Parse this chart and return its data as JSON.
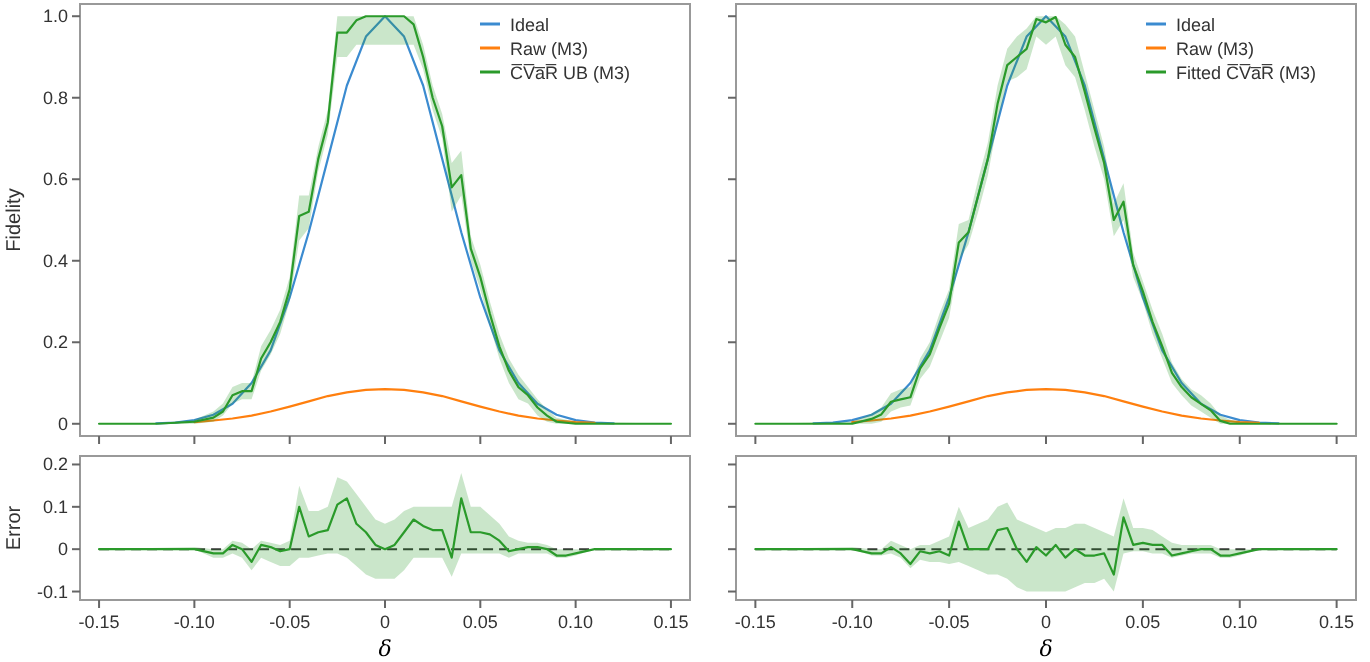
{
  "chart_data": [
    {
      "type": "line",
      "ylabel": "Fidelity",
      "xlim": [
        -0.16,
        0.16
      ],
      "ylim": [
        -0.03,
        1.03
      ],
      "tick_labels": "y",
      "legend": "top right",
      "grid": false,
      "xticks": [
        {
          "value": -0.15,
          "label": null
        },
        {
          "value": -0.1,
          "label": null
        },
        {
          "value": -0.05,
          "label": null
        },
        {
          "value": 0,
          "label": null
        },
        {
          "value": 0.05,
          "label": null
        },
        {
          "value": 0.1,
          "label": null
        },
        {
          "value": 0.15,
          "label": null
        }
      ],
      "yticks": [
        0,
        0.2,
        0.4,
        0.6,
        0.8,
        {
          "value": 1,
          "label": "1.0"
        }
      ],
      "series": [
        {
          "name": "Ideal",
          "color": "#3b8bd0",
          "x": [
            -0.12,
            -0.11,
            -0.1,
            -0.09,
            -0.08,
            -0.07,
            -0.06,
            -0.05,
            -0.04,
            -0.03,
            -0.02,
            -0.01,
            0,
            0.01,
            0.02,
            0.03,
            0.04,
            0.05,
            0.06,
            0.07,
            0.08,
            0.09,
            0.1,
            0.11,
            0.12
          ],
          "values": [
            0.001,
            0.003,
            0.009,
            0.022,
            0.049,
            0.1,
            0.18,
            0.31,
            0.47,
            0.65,
            0.83,
            0.95,
            1.0,
            0.95,
            0.83,
            0.65,
            0.47,
            0.31,
            0.18,
            0.1,
            0.049,
            0.022,
            0.009,
            0.003,
            0.001
          ]
        },
        {
          "name": "Raw (M3)",
          "color": "#ff7f0e",
          "x": [
            -0.1,
            -0.09,
            -0.08,
            -0.07,
            -0.06,
            -0.05,
            -0.04,
            -0.03,
            -0.02,
            -0.01,
            0,
            0.01,
            0.02,
            0.03,
            0.04,
            0.05,
            0.06,
            0.07,
            0.08,
            0.09,
            0.1,
            0.11
          ],
          "values": [
            0.004,
            0.008,
            0.013,
            0.02,
            0.03,
            0.042,
            0.055,
            0.068,
            0.077,
            0.083,
            0.085,
            0.083,
            0.077,
            0.068,
            0.055,
            0.042,
            0.03,
            0.02,
            0.013,
            0.008,
            0.004,
            0.002
          ]
        },
        {
          "name": "C̅V̅a̅R̅ UB (M3)",
          "color": "#2a9a2a",
          "x": [
            -0.15,
            -0.12,
            -0.1,
            -0.09,
            -0.085,
            -0.08,
            -0.075,
            -0.07,
            -0.065,
            -0.06,
            -0.055,
            -0.05,
            -0.045,
            -0.04,
            -0.035,
            -0.03,
            -0.025,
            -0.02,
            -0.015,
            -0.01,
            -0.005,
            0,
            0.005,
            0.01,
            0.015,
            0.02,
            0.025,
            0.03,
            0.035,
            0.04,
            0.045,
            0.05,
            0.055,
            0.06,
            0.065,
            0.07,
            0.075,
            0.08,
            0.085,
            0.09,
            0.1,
            0.15
          ],
          "values": [
            0,
            0,
            0.005,
            0.015,
            0.03,
            0.07,
            0.08,
            0.08,
            0.16,
            0.2,
            0.25,
            0.33,
            0.51,
            0.52,
            0.65,
            0.74,
            0.96,
            0.96,
            0.99,
            1.0,
            1.0,
            1.0,
            1.0,
            1.0,
            0.98,
            0.9,
            0.8,
            0.73,
            0.58,
            0.61,
            0.43,
            0.36,
            0.27,
            0.19,
            0.13,
            0.09,
            0.07,
            0.04,
            0.02,
            0.005,
            0,
            0
          ],
          "lower": [
            0,
            0,
            0,
            0.005,
            0.02,
            0.05,
            0.06,
            0.06,
            0.13,
            0.17,
            0.22,
            0.3,
            0.45,
            0.48,
            0.62,
            0.71,
            0.9,
            0.9,
            0.93,
            0.93,
            0.93,
            0.93,
            0.93,
            0.93,
            0.93,
            0.87,
            0.77,
            0.7,
            0.52,
            0.56,
            0.4,
            0.33,
            0.24,
            0.16,
            0.1,
            0.06,
            0.05,
            0.02,
            0.005,
            0,
            0,
            0
          ],
          "upper": [
            0,
            0,
            0.01,
            0.03,
            0.05,
            0.09,
            0.1,
            0.1,
            0.19,
            0.23,
            0.28,
            0.36,
            0.56,
            0.56,
            0.68,
            0.77,
            1.0,
            1.0,
            1.0,
            1.0,
            1.0,
            1.0,
            1.0,
            1.0,
            1.0,
            0.93,
            0.83,
            0.76,
            0.64,
            0.67,
            0.46,
            0.39,
            0.3,
            0.22,
            0.16,
            0.12,
            0.09,
            0.06,
            0.035,
            0.015,
            0.005,
            0
          ]
        }
      ]
    },
    {
      "type": "line",
      "xlim": [
        -0.16,
        0.16
      ],
      "ylim": [
        -0.03,
        1.03
      ],
      "tick_labels": false,
      "legend": "top right",
      "grid": false,
      "xticks": [
        {
          "value": -0.15,
          "label": null
        },
        {
          "value": -0.1,
          "label": null
        },
        {
          "value": -0.05,
          "label": null
        },
        {
          "value": 0,
          "label": null
        },
        {
          "value": 0.05,
          "label": null
        },
        {
          "value": 0.1,
          "label": null
        },
        {
          "value": 0.15,
          "label": null
        }
      ],
      "yticks": [
        {
          "value": 0,
          "label": null
        },
        {
          "value": 0.2,
          "label": null
        },
        {
          "value": 0.4,
          "label": null
        },
        {
          "value": 0.6,
          "label": null
        },
        {
          "value": 0.8,
          "label": null
        },
        {
          "value": 1,
          "label": null
        }
      ],
      "series": [
        {
          "name": "Ideal",
          "color": "#3b8bd0",
          "x": [
            -0.12,
            -0.11,
            -0.1,
            -0.09,
            -0.08,
            -0.07,
            -0.06,
            -0.05,
            -0.04,
            -0.03,
            -0.02,
            -0.01,
            0,
            0.01,
            0.02,
            0.03,
            0.04,
            0.05,
            0.06,
            0.07,
            0.08,
            0.09,
            0.1,
            0.11,
            0.12
          ],
          "values": [
            0.001,
            0.003,
            0.009,
            0.022,
            0.049,
            0.1,
            0.18,
            0.31,
            0.47,
            0.65,
            0.83,
            0.95,
            1.0,
            0.95,
            0.83,
            0.65,
            0.47,
            0.31,
            0.18,
            0.1,
            0.049,
            0.022,
            0.009,
            0.003,
            0.001
          ]
        },
        {
          "name": "Raw (M3)",
          "color": "#ff7f0e",
          "x": [
            -0.1,
            -0.09,
            -0.08,
            -0.07,
            -0.06,
            -0.05,
            -0.04,
            -0.03,
            -0.02,
            -0.01,
            0,
            0.01,
            0.02,
            0.03,
            0.04,
            0.05,
            0.06,
            0.07,
            0.08,
            0.09,
            0.1,
            0.11
          ],
          "values": [
            0.004,
            0.008,
            0.013,
            0.02,
            0.03,
            0.042,
            0.055,
            0.068,
            0.077,
            0.083,
            0.085,
            0.083,
            0.077,
            0.068,
            0.055,
            0.042,
            0.03,
            0.02,
            0.013,
            0.008,
            0.004,
            0.002
          ]
        },
        {
          "name": "Fitted C̅V̅a̅R̅ (M3)",
          "color": "#2a9a2a",
          "x": [
            -0.15,
            -0.1,
            -0.09,
            -0.085,
            -0.08,
            -0.075,
            -0.07,
            -0.065,
            -0.06,
            -0.055,
            -0.05,
            -0.045,
            -0.04,
            -0.035,
            -0.03,
            -0.025,
            -0.02,
            -0.015,
            -0.01,
            -0.005,
            0,
            0.005,
            0.01,
            0.015,
            0.02,
            0.025,
            0.03,
            0.035,
            0.04,
            0.045,
            0.05,
            0.055,
            0.06,
            0.065,
            0.07,
            0.075,
            0.08,
            0.085,
            0.09,
            0.095,
            0.1,
            0.11,
            0.15
          ],
          "values": [
            0,
            0,
            0.012,
            0.023,
            0.054,
            0.06,
            0.065,
            0.135,
            0.17,
            0.235,
            0.295,
            0.445,
            0.47,
            0.56,
            0.65,
            0.785,
            0.88,
            0.9,
            0.92,
            0.993,
            0.985,
            0.998,
            0.93,
            0.9,
            0.815,
            0.725,
            0.64,
            0.5,
            0.545,
            0.39,
            0.325,
            0.25,
            0.19,
            0.125,
            0.09,
            0.065,
            0.049,
            0.033,
            0.007,
            0,
            0,
            0,
            0
          ],
          "lower": [
            0,
            0,
            0,
            0.005,
            0.03,
            0.04,
            0.045,
            0.11,
            0.14,
            0.2,
            0.26,
            0.4,
            0.44,
            0.52,
            0.61,
            0.74,
            0.84,
            0.85,
            0.87,
            0.95,
            0.93,
            0.95,
            0.88,
            0.85,
            0.77,
            0.68,
            0.6,
            0.46,
            0.5,
            0.36,
            0.3,
            0.22,
            0.16,
            0.1,
            0.07,
            0.045,
            0.03,
            0.015,
            0,
            0,
            0,
            0,
            0
          ],
          "upper": [
            0,
            0.005,
            0.025,
            0.04,
            0.075,
            0.085,
            0.09,
            0.16,
            0.2,
            0.27,
            0.33,
            0.49,
            0.5,
            0.6,
            0.69,
            0.83,
            0.92,
            0.95,
            0.97,
            1.0,
            1.0,
            1.0,
            0.98,
            0.95,
            0.86,
            0.77,
            0.68,
            0.54,
            0.59,
            0.42,
            0.35,
            0.28,
            0.22,
            0.15,
            0.11,
            0.085,
            0.07,
            0.05,
            0.02,
            0.01,
            0.005,
            0,
            0
          ]
        }
      ]
    },
    {
      "type": "line",
      "xlabel": "δ",
      "ylabel": "Error",
      "xlim": [
        -0.16,
        0.16
      ],
      "ylim": [
        -0.12,
        0.22
      ],
      "grid": false,
      "xticks": [
        {
          "value": -0.15,
          "label": "-0.15"
        },
        {
          "value": -0.1,
          "label": "-0.10"
        },
        {
          "value": -0.05,
          "label": "-0.05"
        },
        {
          "value": 0,
          "label": "0"
        },
        {
          "value": 0.05,
          "label": "0.05"
        },
        {
          "value": 0.1,
          "label": "0.10"
        },
        {
          "value": 0.15,
          "label": "0.15"
        }
      ],
      "yticks": [
        {
          "value": -0.1,
          "label": "-0.1"
        },
        0,
        0.1,
        0.2
      ],
      "ref_lines": [
        {
          "axis": "y",
          "value": 0,
          "color": "#333333",
          "line_style": "dashed"
        }
      ],
      "series": [
        {
          "color": "#2a9a2a",
          "x": [
            -0.15,
            -0.1,
            -0.09,
            -0.085,
            -0.08,
            -0.075,
            -0.07,
            -0.065,
            -0.06,
            -0.055,
            -0.05,
            -0.045,
            -0.04,
            -0.035,
            -0.03,
            -0.025,
            -0.02,
            -0.015,
            -0.01,
            -0.005,
            0,
            0.005,
            0.01,
            0.015,
            0.02,
            0.025,
            0.03,
            0.035,
            0.04,
            0.045,
            0.05,
            0.055,
            0.06,
            0.065,
            0.07,
            0.075,
            0.08,
            0.085,
            0.09,
            0.095,
            0.1,
            0.11,
            0.15
          ],
          "values": [
            0,
            0,
            -0.01,
            -0.01,
            0.01,
            0,
            -0.03,
            0.01,
            0.005,
            -0.005,
            0,
            0.1,
            0.03,
            0.04,
            0.045,
            0.105,
            0.12,
            0.06,
            0.04,
            0.01,
            0,
            0.01,
            0.04,
            0.07,
            0.055,
            0.045,
            0.045,
            -0.02,
            0.12,
            0.04,
            0.04,
            0.035,
            0.02,
            -0.005,
            0,
            0.005,
            0.005,
            0,
            -0.015,
            -0.015,
            -0.01,
            0,
            0
          ],
          "lower": [
            0,
            0,
            -0.02,
            -0.02,
            -0.01,
            -0.02,
            -0.05,
            -0.02,
            -0.03,
            -0.04,
            -0.04,
            -0.02,
            -0.02,
            -0.015,
            -0.01,
            -0.01,
            -0.02,
            -0.04,
            -0.06,
            -0.07,
            -0.07,
            -0.07,
            -0.05,
            -0.02,
            -0.02,
            -0.02,
            -0.02,
            -0.065,
            -0.01,
            -0.01,
            -0.01,
            -0.01,
            -0.01,
            -0.02,
            -0.01,
            -0.01,
            -0.01,
            -0.01,
            -0.02,
            -0.02,
            -0.015,
            0,
            0
          ],
          "upper": [
            0,
            0.005,
            0,
            0,
            0.02,
            0.015,
            0,
            0.02,
            0.015,
            0.01,
            0.02,
            0.15,
            0.09,
            0.09,
            0.1,
            0.17,
            0.16,
            0.13,
            0.1,
            0.07,
            0.06,
            0.07,
            0.09,
            0.1,
            0.1,
            0.1,
            0.1,
            0.1,
            0.18,
            0.1,
            0.1,
            0.08,
            0.06,
            0.03,
            0.02,
            0.015,
            0.015,
            0.01,
            0,
            0,
            0,
            0,
            0
          ]
        }
      ]
    },
    {
      "type": "line",
      "xlabel": "δ",
      "xlim": [
        -0.16,
        0.16
      ],
      "ylim": [
        -0.12,
        0.22
      ],
      "tick_labels": "x",
      "grid": false,
      "xticks": [
        {
          "value": -0.15,
          "label": "-0.15"
        },
        {
          "value": -0.1,
          "label": "-0.10"
        },
        {
          "value": -0.05,
          "label": "-0.05"
        },
        {
          "value": 0,
          "label": "0"
        },
        {
          "value": 0.05,
          "label": "0.05"
        },
        {
          "value": 0.1,
          "label": "0.10"
        },
        {
          "value": 0.15,
          "label": "0.15"
        }
      ],
      "yticks": [
        {
          "value": -0.1,
          "label": null
        },
        {
          "value": 0,
          "label": null
        },
        {
          "value": 0.1,
          "label": null
        },
        {
          "value": 0.2,
          "label": null
        }
      ],
      "ref_lines": [
        {
          "axis": "y",
          "value": 0,
          "color": "#333333",
          "line_style": "dashed"
        }
      ],
      "series": [
        {
          "color": "#2a9a2a",
          "x": [
            -0.15,
            -0.1,
            -0.09,
            -0.085,
            -0.08,
            -0.075,
            -0.07,
            -0.065,
            -0.06,
            -0.055,
            -0.05,
            -0.045,
            -0.04,
            -0.035,
            -0.03,
            -0.025,
            -0.02,
            -0.015,
            -0.01,
            -0.005,
            0,
            0.005,
            0.01,
            0.015,
            0.02,
            0.025,
            0.03,
            0.035,
            0.04,
            0.045,
            0.05,
            0.055,
            0.06,
            0.065,
            0.07,
            0.075,
            0.08,
            0.085,
            0.09,
            0.095,
            0.1,
            0.11,
            0.15
          ],
          "values": [
            0,
            0,
            -0.01,
            -0.01,
            0.005,
            -0.01,
            -0.035,
            -0.005,
            -0.01,
            -0.005,
            -0.015,
            0.065,
            0,
            0,
            0,
            0.045,
            0.05,
            0,
            -0.03,
            0.005,
            -0.015,
            0.01,
            -0.02,
            0,
            -0.015,
            -0.015,
            -0.01,
            -0.06,
            0.075,
            0.01,
            0.015,
            0.01,
            0.01,
            -0.015,
            -0.01,
            -0.005,
            0,
            0,
            -0.015,
            -0.015,
            -0.01,
            0,
            0
          ],
          "lower": [
            0,
            0,
            -0.015,
            -0.015,
            -0.01,
            -0.02,
            -0.045,
            -0.025,
            -0.03,
            -0.03,
            -0.035,
            -0.03,
            -0.04,
            -0.05,
            -0.06,
            -0.06,
            -0.07,
            -0.09,
            -0.1,
            -0.1,
            -0.1,
            -0.1,
            -0.1,
            -0.09,
            -0.08,
            -0.08,
            -0.07,
            -0.1,
            -0.01,
            -0.005,
            -0.005,
            -0.01,
            -0.01,
            -0.02,
            -0.015,
            -0.01,
            -0.01,
            -0.01,
            -0.02,
            -0.02,
            -0.015,
            0,
            0
          ],
          "upper": [
            0,
            0.005,
            0,
            0,
            0.02,
            0.01,
            0,
            0.01,
            0.01,
            0.02,
            0.03,
            0.1,
            0.05,
            0.06,
            0.07,
            0.1,
            0.11,
            0.07,
            0.06,
            0.05,
            0.04,
            0.05,
            0.05,
            0.06,
            0.06,
            0.05,
            0.04,
            0.03,
            0.12,
            0.05,
            0.05,
            0.045,
            0.03,
            0.015,
            0.01,
            0.01,
            0.01,
            0.01,
            0,
            0,
            0,
            0,
            0
          ]
        }
      ]
    }
  ]
}
